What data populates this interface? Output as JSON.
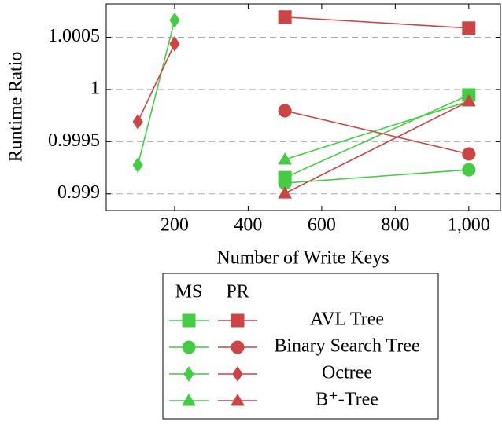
{
  "chart_data": {
    "type": "line",
    "xlabel": "Number of Write Keys",
    "ylabel": "Runtime Ratio",
    "xlim": [
      14,
      1086
    ],
    "ylim": [
      0.99884,
      1.00082
    ],
    "xticks": [
      200,
      400,
      600,
      800,
      {
        "value": 1000,
        "label": "1,000"
      }
    ],
    "yticks": [
      0.999,
      0.9995,
      1,
      1.0005
    ],
    "grid": true,
    "series_names": [
      "AVL Tree",
      "Binary Search Tree",
      "Octree",
      "B⁺-Tree"
    ],
    "groups": [
      {
        "name": "MS",
        "color": "#44cc44",
        "series": [
          {
            "marker": "square",
            "x": [
              500,
              1000
            ],
            "values": [
              0.999155,
              0.999947
            ]
          },
          {
            "marker": "circle",
            "x": [
              500,
              1000
            ],
            "values": [
              0.999103,
              0.999231
            ]
          },
          {
            "marker": "diamond",
            "x": [
              100,
              200
            ],
            "values": [
              0.999276,
              1.000664
            ]
          },
          {
            "marker": "triangle",
            "x": [
              500,
              1000
            ],
            "values": [
              0.999329,
              0.999887
            ]
          }
        ]
      },
      {
        "name": "PR",
        "color": "#cc4444",
        "series": [
          {
            "marker": "square",
            "x": [
              500,
              1000
            ],
            "values": [
              1.000694,
              1.000588
            ]
          },
          {
            "marker": "circle",
            "x": [
              500,
              1000
            ],
            "values": [
              0.999796,
              0.999382
            ]
          },
          {
            "marker": "diamond",
            "x": [
              100,
              200
            ],
            "values": [
              0.999691,
              1.000437
            ]
          },
          {
            "marker": "triangle",
            "x": [
              500,
              1000
            ],
            "values": [
              0.999005,
              0.999887
            ]
          }
        ]
      }
    ]
  }
}
